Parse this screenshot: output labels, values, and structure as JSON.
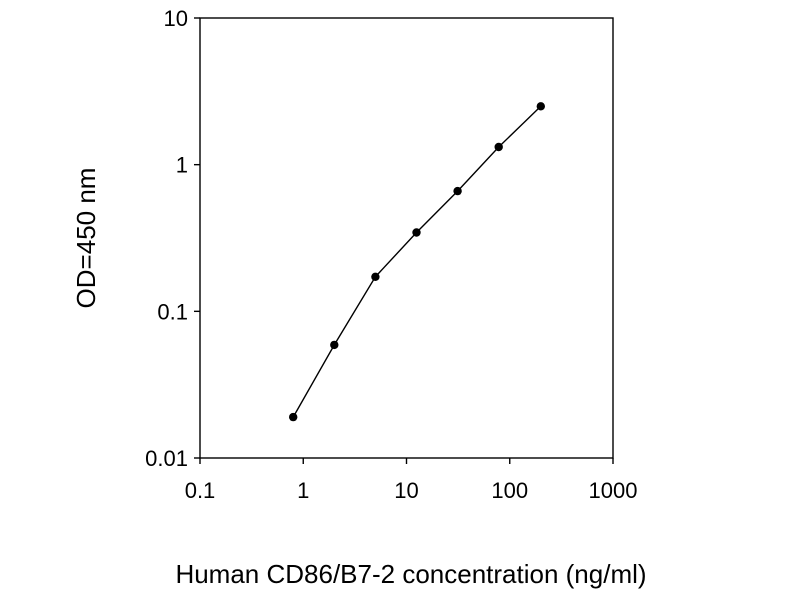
{
  "chart_data": {
    "type": "line",
    "title": "",
    "xlabel": "Human CD86/B7-2 concentration (ng/ml)",
    "ylabel": "OD=450 nm",
    "x_scale": "log",
    "y_scale": "log",
    "xlim": [
      0.1,
      1000
    ],
    "ylim": [
      0.01,
      10
    ],
    "x_ticks": [
      0.1,
      1,
      10,
      100,
      1000
    ],
    "x_tick_labels": [
      "0.1",
      "1",
      "10",
      "100",
      "1000"
    ],
    "y_ticks": [
      0.01,
      0.1,
      1,
      10
    ],
    "y_tick_labels": [
      "0.01",
      "0.1",
      "1",
      "10"
    ],
    "grid": false,
    "legend": "none",
    "series": [
      {
        "x": [
          0.8,
          2,
          5,
          12.5,
          31.25,
          78.1,
          200
        ],
        "y": [
          0.019,
          0.059,
          0.172,
          0.345,
          0.66,
          1.32,
          2.5
        ]
      }
    ],
    "colors": {
      "line": "#000000",
      "marker": "#000000",
      "axes": "#000000"
    }
  }
}
